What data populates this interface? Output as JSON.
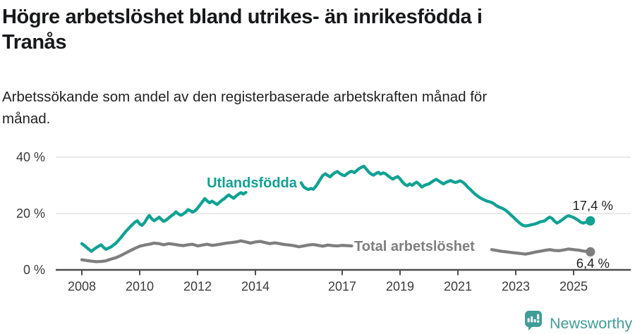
{
  "header": {
    "title_lines": [
      "Högre arbetslöshet bland utrikes- än inrikesfödda i",
      "Tranås"
    ],
    "subtitle_lines": [
      "Arbetssökande som andel av den registerbaserade arbetskraften månad för",
      "månad."
    ]
  },
  "chart_data": {
    "type": "line",
    "unit": "%",
    "grid": true,
    "x_axis": {
      "tick_years": [
        2008,
        2010,
        2012,
        2014,
        2017,
        2019,
        2021,
        2023,
        2025
      ],
      "range": [
        2008,
        2025.6
      ]
    },
    "y_axis": {
      "ticks": [
        {
          "label": "0 %",
          "value": 0
        },
        {
          "label": "20 %",
          "value": 20
        },
        {
          "label": "40 %",
          "value": 40
        }
      ],
      "range": [
        0,
        44
      ]
    },
    "series": [
      {
        "name": "Utlandsfödda",
        "color": "#10a294",
        "end_label": "17,4 %",
        "end_value": 17.4,
        "label_gap_years": [
          2013.72,
          2015.56
        ],
        "points": [
          [
            2008.0,
            9.3
          ],
          [
            2008.08,
            8.7
          ],
          [
            2008.17,
            7.9
          ],
          [
            2008.25,
            7.2
          ],
          [
            2008.33,
            6.6
          ],
          [
            2008.42,
            7.3
          ],
          [
            2008.5,
            7.9
          ],
          [
            2008.58,
            8.4
          ],
          [
            2008.67,
            8.9
          ],
          [
            2008.75,
            8.0
          ],
          [
            2008.83,
            7.3
          ],
          [
            2008.92,
            7.7
          ],
          [
            2009.0,
            8.1
          ],
          [
            2009.17,
            9.4
          ],
          [
            2009.33,
            11.2
          ],
          [
            2009.5,
            13.4
          ],
          [
            2009.67,
            15.3
          ],
          [
            2009.83,
            16.9
          ],
          [
            2009.92,
            17.4
          ],
          [
            2010.0,
            16.3
          ],
          [
            2010.08,
            15.8
          ],
          [
            2010.17,
            16.8
          ],
          [
            2010.25,
            18.2
          ],
          [
            2010.33,
            19.3
          ],
          [
            2010.42,
            18.1
          ],
          [
            2010.5,
            17.4
          ],
          [
            2010.58,
            18.0
          ],
          [
            2010.67,
            18.7
          ],
          [
            2010.75,
            17.9
          ],
          [
            2010.83,
            17.2
          ],
          [
            2010.92,
            17.7
          ],
          [
            2011.0,
            18.4
          ],
          [
            2011.08,
            19.1
          ],
          [
            2011.17,
            19.7
          ],
          [
            2011.25,
            20.6
          ],
          [
            2011.33,
            19.9
          ],
          [
            2011.42,
            19.4
          ],
          [
            2011.5,
            19.8
          ],
          [
            2011.58,
            20.4
          ],
          [
            2011.67,
            21.4
          ],
          [
            2011.75,
            21.0
          ],
          [
            2011.83,
            20.5
          ],
          [
            2011.92,
            21.0
          ],
          [
            2012.0,
            21.9
          ],
          [
            2012.08,
            23.0
          ],
          [
            2012.17,
            24.2
          ],
          [
            2012.25,
            25.3
          ],
          [
            2012.33,
            24.5
          ],
          [
            2012.42,
            23.8
          ],
          [
            2012.5,
            24.4
          ],
          [
            2012.58,
            23.8
          ],
          [
            2012.67,
            23.2
          ],
          [
            2012.75,
            23.9
          ],
          [
            2012.83,
            24.6
          ],
          [
            2012.92,
            25.2
          ],
          [
            2013.0,
            26.0
          ],
          [
            2013.08,
            26.6
          ],
          [
            2013.17,
            25.9
          ],
          [
            2013.25,
            25.4
          ],
          [
            2013.33,
            26.2
          ],
          [
            2013.42,
            26.9
          ],
          [
            2013.5,
            27.4
          ],
          [
            2013.58,
            26.9
          ],
          [
            2013.67,
            27.5
          ],
          [
            2013.75,
            27.9
          ],
          [
            2014.0,
            28.2
          ],
          [
            2014.25,
            28.5
          ],
          [
            2014.5,
            28.3
          ],
          [
            2014.75,
            29.0
          ],
          [
            2015.0,
            29.4
          ],
          [
            2015.25,
            29.9
          ],
          [
            2015.42,
            30.5
          ],
          [
            2015.58,
            30.9
          ],
          [
            2015.67,
            29.4
          ],
          [
            2015.75,
            28.9
          ],
          [
            2015.83,
            28.5
          ],
          [
            2015.92,
            28.9
          ],
          [
            2016.0,
            28.6
          ],
          [
            2016.08,
            29.5
          ],
          [
            2016.17,
            30.9
          ],
          [
            2016.25,
            32.3
          ],
          [
            2016.33,
            33.5
          ],
          [
            2016.42,
            34.1
          ],
          [
            2016.5,
            33.5
          ],
          [
            2016.58,
            33.0
          ],
          [
            2016.67,
            33.9
          ],
          [
            2016.75,
            34.5
          ],
          [
            2016.83,
            34.9
          ],
          [
            2016.92,
            34.2
          ],
          [
            2017.0,
            33.7
          ],
          [
            2017.08,
            33.4
          ],
          [
            2017.17,
            34.1
          ],
          [
            2017.25,
            34.7
          ],
          [
            2017.33,
            35.0
          ],
          [
            2017.42,
            34.5
          ],
          [
            2017.5,
            35.2
          ],
          [
            2017.58,
            35.9
          ],
          [
            2017.67,
            36.4
          ],
          [
            2017.75,
            36.8
          ],
          [
            2017.83,
            35.8
          ],
          [
            2017.92,
            34.7
          ],
          [
            2018.0,
            34.0
          ],
          [
            2018.08,
            33.6
          ],
          [
            2018.17,
            34.2
          ],
          [
            2018.25,
            34.6
          ],
          [
            2018.33,
            34.0
          ],
          [
            2018.42,
            34.4
          ],
          [
            2018.5,
            34.1
          ],
          [
            2018.58,
            33.4
          ],
          [
            2018.67,
            32.7
          ],
          [
            2018.75,
            32.2
          ],
          [
            2018.83,
            32.7
          ],
          [
            2018.92,
            33.1
          ],
          [
            2019.0,
            32.3
          ],
          [
            2019.08,
            31.2
          ],
          [
            2019.17,
            30.3
          ],
          [
            2019.25,
            29.9
          ],
          [
            2019.33,
            30.5
          ],
          [
            2019.42,
            30.0
          ],
          [
            2019.5,
            30.7
          ],
          [
            2019.58,
            31.1
          ],
          [
            2019.67,
            30.3
          ],
          [
            2019.75,
            29.4
          ],
          [
            2019.83,
            29.9
          ],
          [
            2019.92,
            30.3
          ],
          [
            2020.0,
            30.5
          ],
          [
            2020.08,
            31.1
          ],
          [
            2020.17,
            31.7
          ],
          [
            2020.25,
            32.1
          ],
          [
            2020.33,
            31.6
          ],
          [
            2020.42,
            31.0
          ],
          [
            2020.5,
            30.5
          ],
          [
            2020.58,
            31.0
          ],
          [
            2020.67,
            31.4
          ],
          [
            2020.75,
            31.7
          ],
          [
            2020.83,
            31.3
          ],
          [
            2020.92,
            31.0
          ],
          [
            2021.0,
            31.3
          ],
          [
            2021.08,
            31.6
          ],
          [
            2021.17,
            31.1
          ],
          [
            2021.25,
            30.4
          ],
          [
            2021.33,
            29.5
          ],
          [
            2021.42,
            28.6
          ],
          [
            2021.5,
            27.8
          ],
          [
            2021.58,
            27.0
          ],
          [
            2021.67,
            26.3
          ],
          [
            2021.75,
            25.7
          ],
          [
            2021.83,
            25.2
          ],
          [
            2021.92,
            24.8
          ],
          [
            2022.0,
            24.4
          ],
          [
            2022.08,
            24.2
          ],
          [
            2022.17,
            23.9
          ],
          [
            2022.25,
            23.4
          ],
          [
            2022.33,
            22.8
          ],
          [
            2022.42,
            22.3
          ],
          [
            2022.5,
            22.0
          ],
          [
            2022.58,
            21.6
          ],
          [
            2022.67,
            21.0
          ],
          [
            2022.75,
            20.3
          ],
          [
            2022.83,
            19.5
          ],
          [
            2022.92,
            18.7
          ],
          [
            2023.0,
            17.9
          ],
          [
            2023.08,
            17.1
          ],
          [
            2023.17,
            16.3
          ],
          [
            2023.25,
            15.8
          ],
          [
            2023.33,
            15.6
          ],
          [
            2023.42,
            15.7
          ],
          [
            2023.5,
            15.9
          ],
          [
            2023.58,
            16.1
          ],
          [
            2023.67,
            16.3
          ],
          [
            2023.75,
            16.6
          ],
          [
            2023.83,
            17.0
          ],
          [
            2023.92,
            17.2
          ],
          [
            2024.0,
            17.4
          ],
          [
            2024.08,
            18.1
          ],
          [
            2024.17,
            18.7
          ],
          [
            2024.25,
            18.3
          ],
          [
            2024.33,
            17.4
          ],
          [
            2024.42,
            16.6
          ],
          [
            2024.5,
            17.0
          ],
          [
            2024.58,
            17.6
          ],
          [
            2024.67,
            18.3
          ],
          [
            2024.75,
            18.9
          ],
          [
            2024.83,
            19.2
          ],
          [
            2024.92,
            18.9
          ],
          [
            2025.0,
            18.6
          ],
          [
            2025.08,
            18.1
          ],
          [
            2025.17,
            17.5
          ],
          [
            2025.25,
            16.9
          ],
          [
            2025.33,
            16.6
          ],
          [
            2025.42,
            16.9
          ],
          [
            2025.58,
            17.4
          ]
        ]
      },
      {
        "name": "Total arbetslöshet",
        "color": "#7e7e7e",
        "end_label": "6,4 %",
        "end_value": 6.4,
        "label_gap_years": [
          2017.42,
          2022.12
        ],
        "points": [
          [
            2008.0,
            3.6
          ],
          [
            2008.17,
            3.3
          ],
          [
            2008.33,
            3.1
          ],
          [
            2008.5,
            2.9
          ],
          [
            2008.67,
            3.0
          ],
          [
            2008.83,
            3.2
          ],
          [
            2009.0,
            3.8
          ],
          [
            2009.17,
            4.3
          ],
          [
            2009.33,
            5.0
          ],
          [
            2009.5,
            5.9
          ],
          [
            2009.67,
            6.8
          ],
          [
            2009.83,
            7.6
          ],
          [
            2010.0,
            8.4
          ],
          [
            2010.17,
            8.8
          ],
          [
            2010.33,
            9.1
          ],
          [
            2010.5,
            9.5
          ],
          [
            2010.67,
            9.3
          ],
          [
            2010.83,
            8.9
          ],
          [
            2011.0,
            9.3
          ],
          [
            2011.17,
            9.1
          ],
          [
            2011.33,
            8.8
          ],
          [
            2011.5,
            8.6
          ],
          [
            2011.67,
            8.9
          ],
          [
            2011.83,
            9.1
          ],
          [
            2012.0,
            8.5
          ],
          [
            2012.17,
            8.8
          ],
          [
            2012.33,
            9.1
          ],
          [
            2012.5,
            8.7
          ],
          [
            2012.67,
            8.9
          ],
          [
            2012.83,
            9.2
          ],
          [
            2013.0,
            9.5
          ],
          [
            2013.17,
            9.7
          ],
          [
            2013.33,
            9.9
          ],
          [
            2013.5,
            10.3
          ],
          [
            2013.67,
            9.9
          ],
          [
            2013.83,
            9.5
          ],
          [
            2014.0,
            9.9
          ],
          [
            2014.17,
            10.1
          ],
          [
            2014.33,
            9.7
          ],
          [
            2014.5,
            9.3
          ],
          [
            2014.67,
            9.6
          ],
          [
            2014.83,
            9.3
          ],
          [
            2015.0,
            9.0
          ],
          [
            2015.17,
            8.8
          ],
          [
            2015.33,
            8.6
          ],
          [
            2015.5,
            8.2
          ],
          [
            2015.67,
            8.5
          ],
          [
            2015.83,
            8.8
          ],
          [
            2016.0,
            9.0
          ],
          [
            2016.17,
            8.7
          ],
          [
            2016.33,
            8.4
          ],
          [
            2016.5,
            8.8
          ],
          [
            2016.67,
            8.6
          ],
          [
            2016.83,
            8.5
          ],
          [
            2017.0,
            8.7
          ],
          [
            2017.17,
            8.6
          ],
          [
            2017.33,
            8.5
          ],
          [
            2017.5,
            8.5
          ],
          [
            2018.0,
            8.6
          ],
          [
            2018.5,
            8.4
          ],
          [
            2019.0,
            8.3
          ],
          [
            2019.5,
            8.5
          ],
          [
            2020.0,
            9.4
          ],
          [
            2020.33,
            9.9
          ],
          [
            2020.67,
            9.6
          ],
          [
            2021.0,
            9.0
          ],
          [
            2021.5,
            8.2
          ],
          [
            2022.0,
            7.4
          ],
          [
            2022.17,
            7.2
          ],
          [
            2022.33,
            6.9
          ],
          [
            2022.5,
            6.6
          ],
          [
            2022.67,
            6.4
          ],
          [
            2022.83,
            6.2
          ],
          [
            2023.0,
            6.0
          ],
          [
            2023.17,
            5.8
          ],
          [
            2023.33,
            5.6
          ],
          [
            2023.5,
            5.9
          ],
          [
            2023.67,
            6.3
          ],
          [
            2023.83,
            6.6
          ],
          [
            2024.0,
            6.9
          ],
          [
            2024.17,
            7.2
          ],
          [
            2024.33,
            6.9
          ],
          [
            2024.5,
            6.8
          ],
          [
            2024.67,
            7.1
          ],
          [
            2024.83,
            7.4
          ],
          [
            2025.0,
            7.2
          ],
          [
            2025.17,
            7.0
          ],
          [
            2025.33,
            6.7
          ],
          [
            2025.58,
            6.4
          ]
        ]
      }
    ]
  },
  "footer": {
    "brand": "Newsworthy",
    "logo_icon": "bar-chart-speech-bubble"
  },
  "colors": {
    "accent_teal": "#10a294",
    "logo_teal": "#3f9d99",
    "series_gray": "#7e7e7e",
    "gridline": "#dcdcdc",
    "axis": "#4d4d4d",
    "text_dark": "#17181a"
  }
}
